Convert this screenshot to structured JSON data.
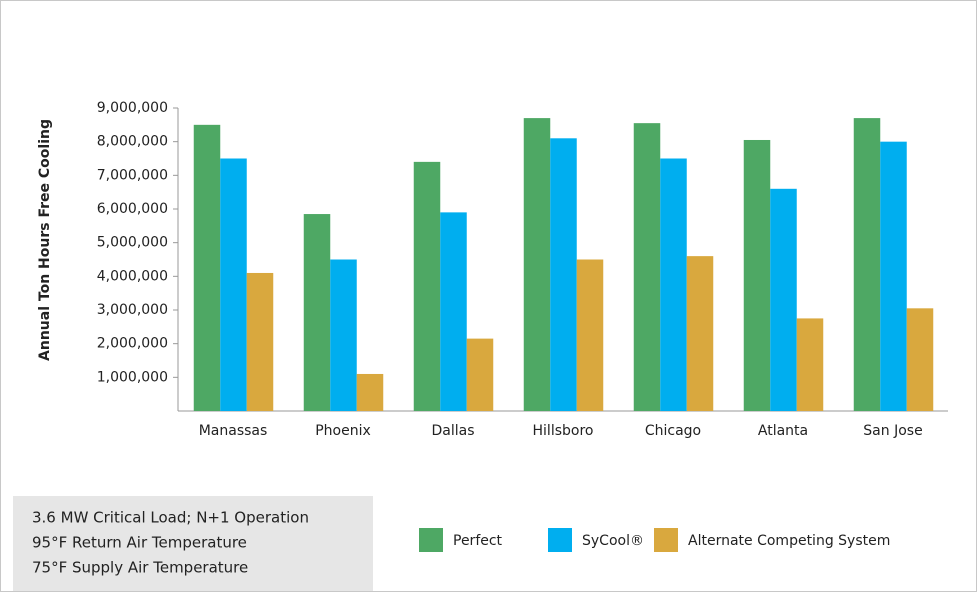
{
  "chart_data": {
    "type": "bar",
    "y_label": "Annual Ton Hours Free Cooling",
    "categories": [
      "Manassas",
      "Phoenix",
      "Dallas",
      "Hillsboro",
      "Chicago",
      "Atlanta",
      "San Jose"
    ],
    "series": [
      {
        "name": "Perfect",
        "color": "#4ea864",
        "values": [
          8500000,
          5850000,
          7400000,
          8700000,
          8550000,
          8050000,
          8700000
        ]
      },
      {
        "name": "SyCool®",
        "color": "#00aeef",
        "values": [
          7500000,
          4500000,
          5900000,
          8100000,
          7500000,
          6600000,
          8000000
        ]
      },
      {
        "name": "Alternate Competing System",
        "color": "#d9a83e",
        "values": [
          4100000,
          1100000,
          2150000,
          4500000,
          4600000,
          2750000,
          3050000
        ]
      }
    ],
    "ylim": [
      0,
      9000000
    ],
    "yticks": [
      {
        "value": 1000000,
        "label": "1,000,000"
      },
      {
        "value": 2000000,
        "label": "2,000,000"
      },
      {
        "value": 3000000,
        "label": "3,000,000"
      },
      {
        "value": 4000000,
        "label": "4,000,000"
      },
      {
        "value": 5000000,
        "label": "5,000,000"
      },
      {
        "value": 6000000,
        "label": "6,000,000"
      },
      {
        "value": 7000000,
        "label": "7,000,000"
      },
      {
        "value": 8000000,
        "label": "8,000,000"
      },
      {
        "value": 9000000,
        "label": "9,000,000"
      }
    ],
    "notes": [
      "3.6 MW Critical Load; N+1 Operation",
      "95°F Return Air Temperature",
      "75°F Supply Air Temperature"
    ]
  }
}
